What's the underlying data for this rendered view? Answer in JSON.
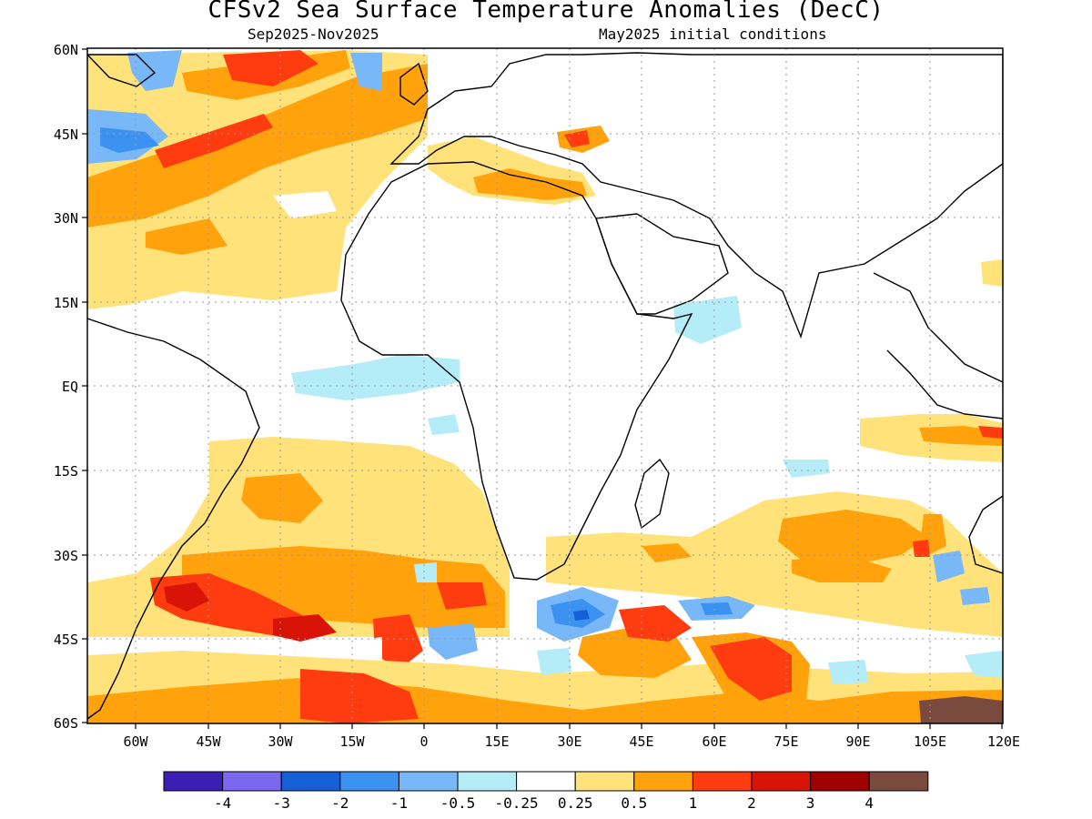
{
  "title": "CFSv2 Sea Surface Temperature Anomalies (DecC)",
  "subtitle_left": "Sep2025-Nov2025",
  "subtitle_right": "May2025 initial conditions",
  "lat_labels": [
    "60N",
    "45N",
    "30N",
    "15N",
    "EQ",
    "15S",
    "30S",
    "45S",
    "60S"
  ],
  "lon_labels": [
    "60W",
    "45W",
    "30W",
    "15W",
    "0",
    "15E",
    "30E",
    "45E",
    "60E",
    "75E",
    "90E",
    "105E",
    "120E"
  ],
  "colorbar": {
    "colors": [
      "#3b1fb5",
      "#7b68ee",
      "#1560d6",
      "#3c92f0",
      "#78b8f8",
      "#b4ecf8",
      "#ffffff",
      "#ffe27a",
      "#ffa20c",
      "#ff3c10",
      "#d81408",
      "#a00000",
      "#7a4a3e"
    ],
    "labels": [
      "-4",
      "-3",
      "-2",
      "-1",
      "-0.5",
      "-0.25",
      "0.25",
      "0.5",
      "1",
      "2",
      "3",
      "4"
    ]
  }
}
